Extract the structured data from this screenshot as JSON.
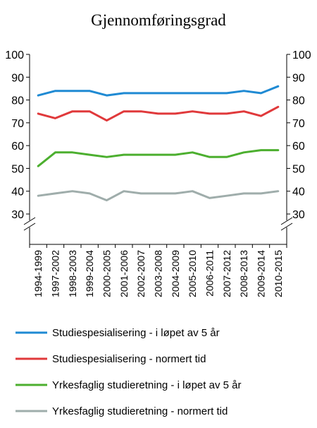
{
  "chart_data": {
    "type": "line",
    "title": "Gjennomføringsgrad",
    "xlabel": "",
    "ylabel": "",
    "ylim": [
      30,
      100
    ],
    "axis_break": true,
    "y_ticks": [
      "30",
      "40",
      "50",
      "60",
      "70",
      "80",
      "90",
      "100"
    ],
    "categories": [
      "1994-1999",
      "1997-2002",
      "1998-2003",
      "1999-2004",
      "2000-2005",
      "2001-2006",
      "2002-2007",
      "2003-2008",
      "2004-2009",
      "2005-2010",
      "2006-2011",
      "2007-2012",
      "2008-2013",
      "2009-2014",
      "2010-2015"
    ],
    "legend_position": "bottom",
    "grid": false,
    "series": [
      {
        "name": "Studiespesialisering - i løpet av 5 år",
        "color": "#1f8ad3",
        "values": [
          82,
          84,
          84,
          84,
          82,
          83,
          83,
          83,
          83,
          83,
          83,
          83,
          84,
          83,
          86
        ]
      },
      {
        "name": "Studiespesialisering - normert tid",
        "color": "#e0393b",
        "values": [
          74,
          72,
          75,
          75,
          71,
          75,
          75,
          74,
          74,
          75,
          74,
          74,
          75,
          73,
          77
        ]
      },
      {
        "name": "Yrkesfaglig studieretning - i løpet av 5 år",
        "color": "#4caf2f",
        "values": [
          51,
          57,
          57,
          56,
          55,
          56,
          56,
          56,
          56,
          57,
          55,
          55,
          57,
          58,
          58
        ]
      },
      {
        "name": "Yrkesfaglig studieretning - normert tid",
        "color": "#9fadab",
        "values": [
          38,
          39,
          40,
          39,
          36,
          40,
          39,
          39,
          39,
          40,
          37,
          38,
          39,
          39,
          40
        ]
      }
    ]
  }
}
